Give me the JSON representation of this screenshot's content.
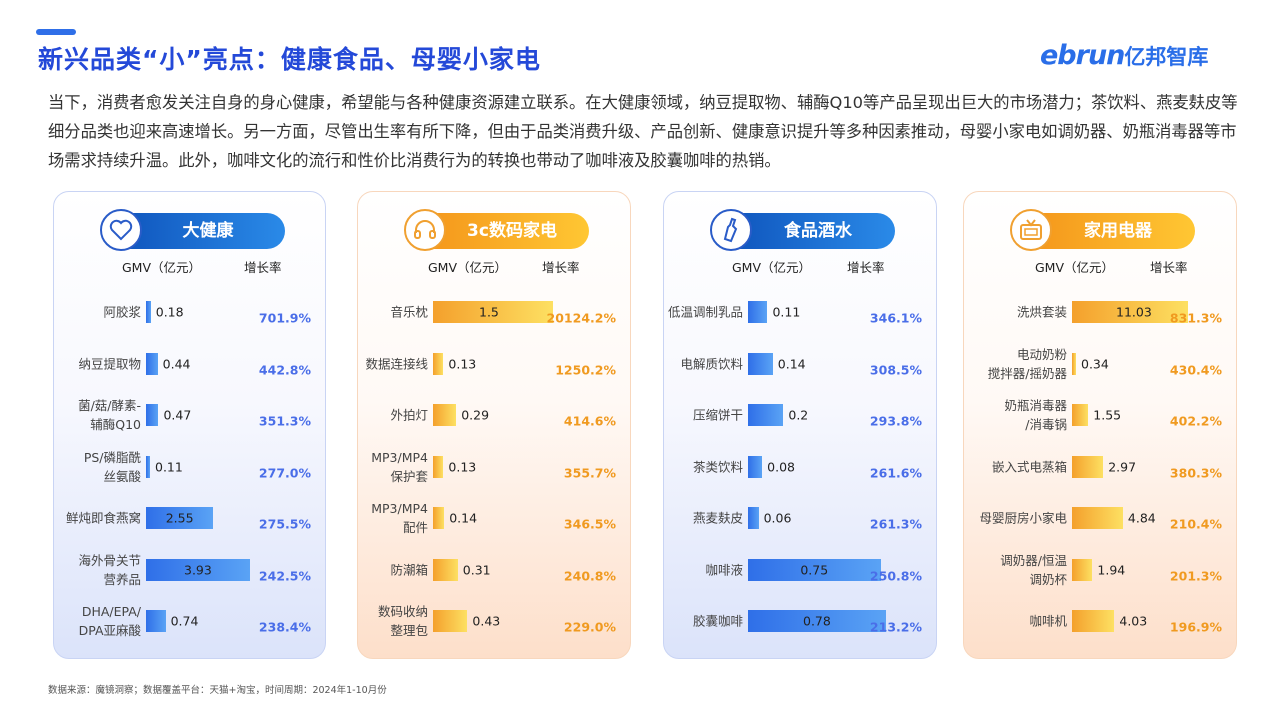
{
  "title": "新兴品类“小”亮点：健康食品、母婴小家电",
  "logo": {
    "brand": "ebrun",
    "cn": "亿邦智库"
  },
  "intro": "当下，消费者愈发关注自身的身心健康，希望能与各种健康资源建立联系。在大健康领域，纳豆提取物、辅酶Q10等产品呈现出巨大的市场潜力；茶饮料、燕麦麸皮等细分品类也迎来高速增长。另一方面，尽管出生率有所下降，但由于品类消费升级、产品创新、健康意识提升等多种因素推动，母婴小家电如调奶器、奶瓶消毒器等市场需求持续升温。此外，咖啡文化的流行和性价比消费行为的转换也带动了咖啡液及胶囊咖啡的热销。",
  "footer": "数据来源：魔镜洞察；数据覆盖平台：天猫+淘宝，时间周期：2024年1-10月份",
  "colors": {
    "blue": "#2f6fe8",
    "orange": "#f4a02c"
  },
  "chart_data": [
    {
      "type": "bar",
      "title": "大健康",
      "icon": "heart-icon",
      "theme": "blue",
      "xlabel": "GMV（亿元）",
      "growth_label": "增长率",
      "categories": [
        "阿胶浆",
        "纳豆提取物",
        "菌/菇/酵素-\n辅酶Q10",
        "PS/磷脂酰\n丝氨酸",
        "鲜炖即食燕窝",
        "海外骨关节\n营养品",
        "DHA/EPA/\nDPA亚麻酸"
      ],
      "values": [
        0.18,
        0.44,
        0.47,
        0.11,
        2.55,
        3.93,
        0.74
      ],
      "growth": [
        "701.9%",
        "442.8%",
        "351.3%",
        "277.0%",
        "275.5%",
        "242.5%",
        "238.4%"
      ]
    },
    {
      "type": "bar",
      "title": "3c数码家电",
      "icon": "headphones-icon",
      "theme": "orange",
      "xlabel": "GMV（亿元）",
      "growth_label": "增长率",
      "categories": [
        "音乐枕",
        "数据连接线",
        "外拍灯",
        "MP3/MP4\n保护套",
        "MP3/MP4\n配件",
        "防潮箱",
        "数码收纳\n整理包"
      ],
      "values": [
        1.5,
        0.13,
        0.29,
        0.13,
        0.14,
        0.31,
        0.43
      ],
      "growth": [
        "20124.2%",
        "1250.2%",
        "414.6%",
        "355.7%",
        "346.5%",
        "240.8%",
        "229.0%"
      ]
    },
    {
      "type": "bar",
      "title": "食品酒水",
      "icon": "bottle-icon",
      "theme": "blue",
      "xlabel": "GMV（亿元）",
      "growth_label": "增长率",
      "categories": [
        "低温调制乳品",
        "电解质饮料",
        "压缩饼干",
        "茶类饮料",
        "燕麦麸皮",
        "咖啡液",
        "胶囊咖啡"
      ],
      "values": [
        0.11,
        0.14,
        0.2,
        0.08,
        0.06,
        0.75,
        0.78
      ],
      "growth": [
        "346.1%",
        "308.5%",
        "293.8%",
        "261.6%",
        "261.3%",
        "250.8%",
        "213.2%"
      ]
    },
    {
      "type": "bar",
      "title": "家用电器",
      "icon": "tv-icon",
      "theme": "orange",
      "xlabel": "GMV（亿元）",
      "growth_label": "增长率",
      "categories": [
        "洗烘套装",
        "电动奶粉\n搅拌器/摇奶器",
        "奶瓶消毒器\n/消毒锅",
        "嵌入式电蒸箱",
        "母婴厨房小家电",
        "调奶器/恒温\n调奶杯",
        "咖啡机"
      ],
      "values": [
        11.03,
        0.34,
        1.55,
        2.97,
        4.84,
        1.94,
        4.03
      ],
      "growth": [
        "831.3%",
        "430.4%",
        "402.2%",
        "380.3%",
        "210.4%",
        "201.3%",
        "196.9%"
      ]
    }
  ]
}
